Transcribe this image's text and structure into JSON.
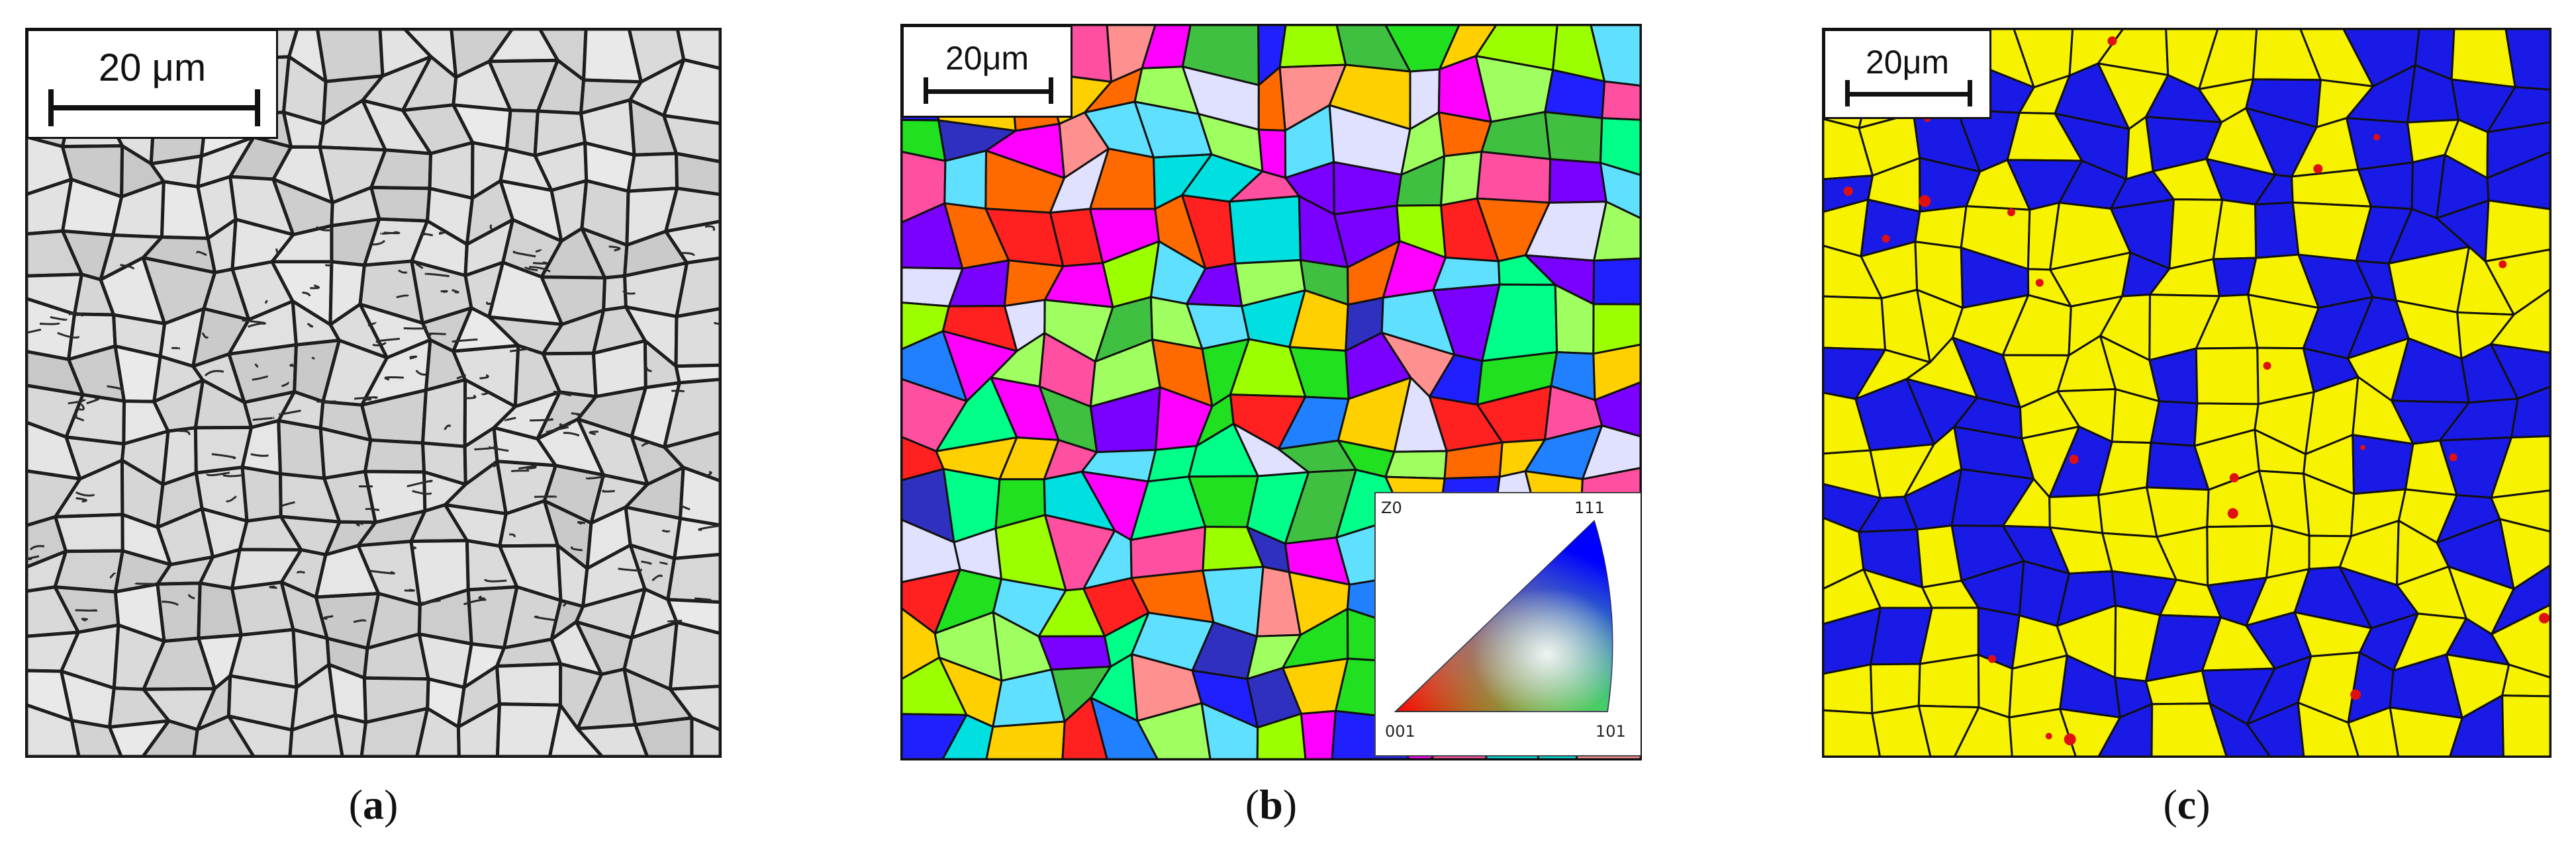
{
  "panels": [
    {
      "scale_label": "20 μm",
      "caption_open": "(",
      "caption_letter": "a",
      "caption_close": ")"
    },
    {
      "scale_label": "20μm",
      "caption_open": "(",
      "caption_letter": "b",
      "caption_close": ")"
    },
    {
      "scale_label": "20μm",
      "caption_open": "(",
      "caption_letter": "c",
      "caption_close": ")"
    }
  ],
  "ipf_legend": {
    "axis": "Z0",
    "corner_top": "111",
    "corner_left": "001",
    "corner_right": "101"
  },
  "colors": {
    "micrograph_bg": "#d9d9d9",
    "grain_boundary": "#111111",
    "phase_yellow": "#f7f200",
    "phase_blue": "#1a1ae6",
    "phase_red": "#e01010"
  }
}
